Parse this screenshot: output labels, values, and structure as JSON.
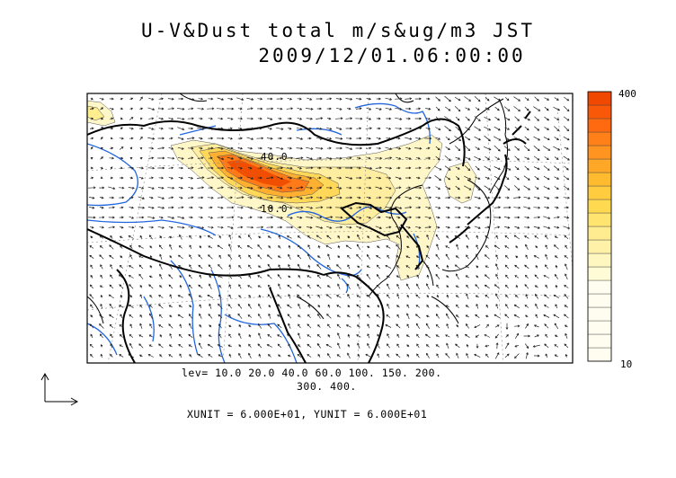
{
  "title": "U-V&Dust total m/s&ug/m3 JST",
  "subtitle": "2009/12/01.06:00:00",
  "contour_labels": [
    "40.0",
    "10.0"
  ],
  "levels_line1": "lev= 10.0 20.0 40.0 60.0 100. 150. 200.",
  "levels_line2": "300. 400.",
  "unit_line": "XUNIT = 6.000E+01, YUNIT = 6.000E+01",
  "colorbar": {
    "max_label": "400",
    "min_label": "10",
    "colors": [
      "#fffbd6",
      "#fff6c0",
      "#fff1a8",
      "#ffeb90",
      "#ffe470",
      "#ffda50",
      "#ffcc40",
      "#ffbb30",
      "#ffa828",
      "#ff9420",
      "#ff8018",
      "#ff6a10",
      "#f85808",
      "#f04800"
    ]
  },
  "colors": {
    "coast": "#000000",
    "river": "#2266dd",
    "grid": "#777777",
    "vector": "#222222"
  }
}
